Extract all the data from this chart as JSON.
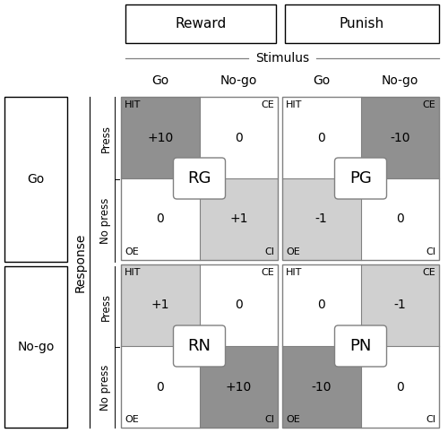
{
  "reward_label": "Reward",
  "punish_label": "Punish",
  "stimulus_label": "Stimulus",
  "response_label": "Response",
  "press_label": "Press",
  "nopress_label": "No press",
  "col_labels": [
    "Go",
    "No-go",
    "Go",
    "No-go"
  ],
  "row_labels_left": [
    "Go",
    "No-go"
  ],
  "blocks": {
    "RG": {
      "colors": [
        "#909090",
        "#ffffff",
        "#ffffff",
        "#d0d0d0"
      ],
      "values": [
        "+10",
        "0",
        "0",
        "+1"
      ]
    },
    "PG": {
      "colors": [
        "#ffffff",
        "#909090",
        "#d0d0d0",
        "#ffffff"
      ],
      "values": [
        "0",
        "-10",
        "-1",
        "0"
      ]
    },
    "RN": {
      "colors": [
        "#d0d0d0",
        "#ffffff",
        "#ffffff",
        "#909090"
      ],
      "values": [
        "+1",
        "0",
        "0",
        "+10"
      ]
    },
    "PN": {
      "colors": [
        "#ffffff",
        "#d0d0d0",
        "#909090",
        "#ffffff"
      ],
      "values": [
        "0",
        "-1",
        "-10",
        "0"
      ]
    }
  },
  "dark_gray": "#909090",
  "light_gray": "#d0d0d0",
  "white": "#ffffff",
  "fig_width": 5.0,
  "fig_height": 4.83
}
